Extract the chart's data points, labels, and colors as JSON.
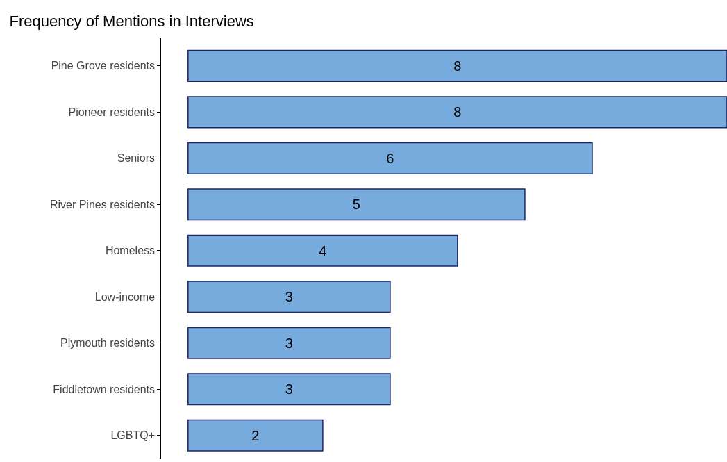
{
  "chart_data": {
    "type": "bar",
    "orientation": "horizontal",
    "title": "Frequency of Mentions in Interviews",
    "categories": [
      "Pine Grove residents",
      "Pioneer residents",
      "Seniors",
      "River Pines residents",
      "Homeless",
      "Low-income",
      "Plymouth residents",
      "Fiddletown residents",
      "LGBTQ+"
    ],
    "values": [
      8,
      8,
      6,
      5,
      4,
      3,
      3,
      3,
      2
    ],
    "color": "#77aadd",
    "data_labels": true,
    "legend": false
  }
}
